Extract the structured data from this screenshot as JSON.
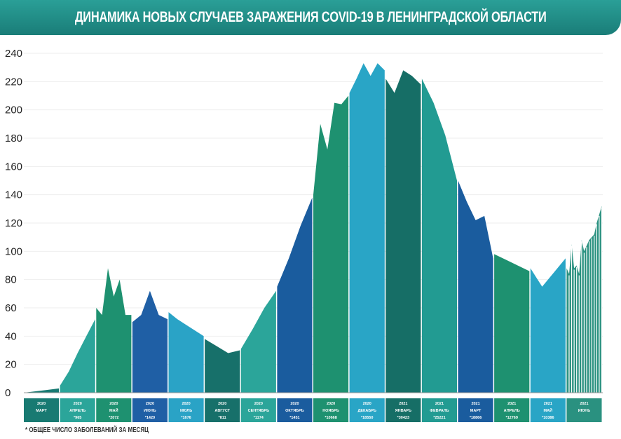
{
  "header": {
    "title": "ДИНАМИКА НОВЫХ СЛУЧАЕВ ЗАРАЖЕНИЯ COVID-19 В ЛЕНИНГРАДСКОЙ ОБЛАСТИ"
  },
  "footnote": "* ОБЩЕЕ ЧИСЛО ЗАБОЛЕВАНИЙ ЗА МЕСЯЦ",
  "chart_data": {
    "type": "area",
    "title": "ДИНАМИКА НОВЫХ СЛУЧАЕВ ЗАРАЖЕНИЯ COVID-19 В ЛЕНИНГРАДСКОЙ ОБЛАСТИ",
    "ylim": [
      0,
      240
    ],
    "yticks": [
      0,
      20,
      40,
      60,
      80,
      100,
      120,
      140,
      160,
      180,
      200,
      220,
      240
    ],
    "grid": true,
    "months": [
      {
        "year": "2020",
        "label": "МАРТ",
        "total": "",
        "color": "#187a72",
        "values": [
          0,
          1,
          2,
          3
        ]
      },
      {
        "year": "2020",
        "label": "АПРЕЛЬ",
        "total": "*965",
        "color": "#2ba59a",
        "values": [
          5,
          15,
          28,
          40,
          52
        ]
      },
      {
        "year": "2020",
        "label": "МАЙ",
        "total": "*2072",
        "color": "#1e9170",
        "values": [
          60,
          55,
          88,
          68,
          80,
          55,
          55
        ]
      },
      {
        "year": "2020",
        "label": "ИЮНЬ",
        "total": "*1420",
        "color": "#1f5fa5",
        "values": [
          50,
          55,
          72,
          55,
          52
        ]
      },
      {
        "year": "2020",
        "label": "ИЮЛЬ",
        "total": "*1676",
        "color": "#2aa3c6",
        "values": [
          57,
          52,
          48,
          44,
          40
        ]
      },
      {
        "year": "2020",
        "label": "АВГУСТ",
        "total": "*811",
        "color": "#17706a",
        "values": [
          38,
          33,
          28,
          30
        ]
      },
      {
        "year": "2020",
        "label": "СЕНТЯБРЬ",
        "total": "*1174",
        "color": "#2ba59a",
        "values": [
          31,
          45,
          60,
          72
        ]
      },
      {
        "year": "2020",
        "label": "ОКТЯБРЬ",
        "total": "*1451",
        "color": "#1a5c9e",
        "values": [
          75,
          95,
          118,
          138
        ]
      },
      {
        "year": "2020",
        "label": "НОЯБРЬ",
        "total": "*10668",
        "color": "#1e9170",
        "values": [
          140,
          190,
          172,
          205,
          204,
          210
        ]
      },
      {
        "year": "2020",
        "label": "ДЕКАБРЬ",
        "total": "*18550",
        "color": "#29a5c6",
        "values": [
          212,
          222,
          233,
          224,
          233,
          228
        ]
      },
      {
        "year": "2021",
        "label": "ЯНВАРЬ",
        "total": "*30423",
        "color": "#166e66",
        "values": [
          222,
          212,
          228,
          224,
          218
        ]
      },
      {
        "year": "2021",
        "label": "ФЕВРАЛЬ",
        "total": "*25221",
        "color": "#229b92",
        "values": [
          222,
          205,
          182,
          150
        ]
      },
      {
        "year": "2021",
        "label": "МАРТ",
        "total": "*18866",
        "color": "#1a5c9e",
        "values": [
          150,
          135,
          122,
          125,
          95
        ]
      },
      {
        "year": "2021",
        "label": "АПРЕЛЬ",
        "total": "*12769",
        "color": "#1e9170",
        "values": [
          98,
          94,
          90,
          86
        ]
      },
      {
        "year": "2021",
        "label": "МАЙ",
        "total": "*10386",
        "color": "#29a5c6",
        "values": [
          88,
          75,
          85,
          95
        ]
      },
      {
        "year": "2021",
        "label": "ИЮНЬ",
        "total": "",
        "color": "#2a9180",
        "values": [
          88,
          84,
          105,
          88,
          90,
          84,
          108,
          100,
          104,
          108,
          110,
          112,
          120,
          126,
          132
        ]
      }
    ]
  }
}
